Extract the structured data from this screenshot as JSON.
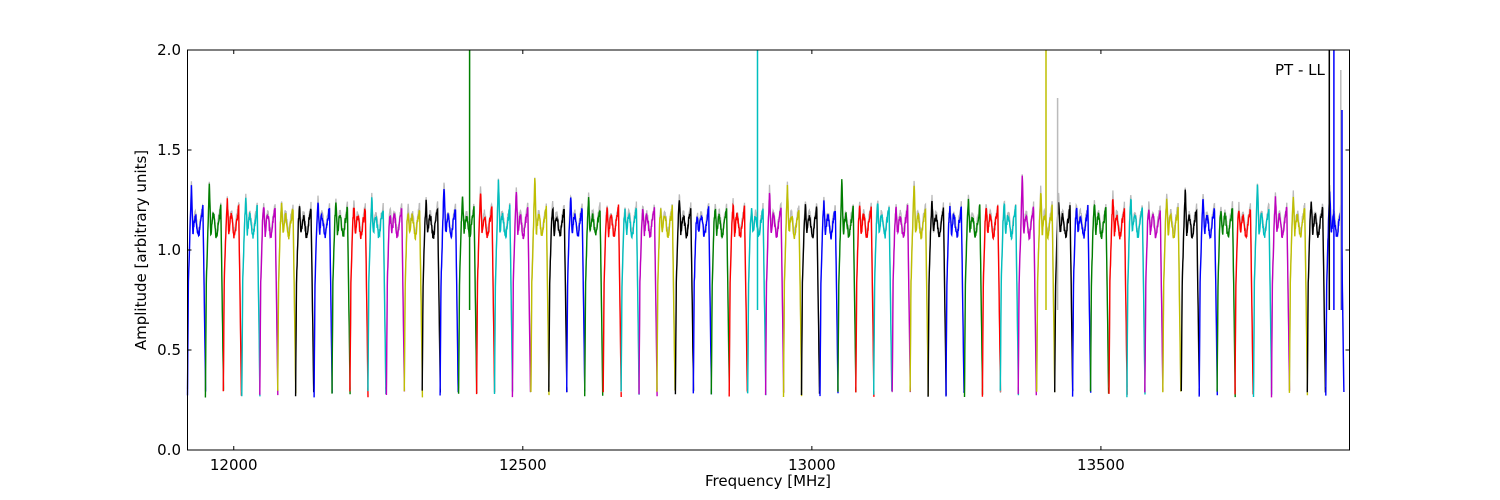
{
  "chart_data": {
    "type": "line",
    "title": "",
    "annotation": "PT - LL",
    "xlabel": "Frequency [MHz]",
    "ylabel": "Amplitude [arbitrary units]",
    "xlim": [
      11920,
      13930
    ],
    "ylim": [
      0.0,
      2.0
    ],
    "x_ticks": [
      12000,
      12500,
      13000,
      13500
    ],
    "x_tick_labels": [
      "12000",
      "12500",
      "13000",
      "13500"
    ],
    "y_ticks": [
      0.0,
      0.5,
      1.0,
      1.5,
      2.0
    ],
    "y_tick_labels": [
      "0.0",
      "0.5",
      "1.0",
      "1.5",
      "2.0"
    ],
    "grid": false,
    "legend": "none",
    "reference_color": "#bbbbbb",
    "channel_width_mhz": 31.25,
    "channel_starts_mhz": [
      11920,
      11951,
      11982,
      12014,
      12045,
      12076,
      12107,
      12139,
      12170,
      12201,
      12232,
      12264,
      12295,
      12326,
      12357,
      12389,
      12420,
      12451,
      12482,
      12514,
      12545,
      12576,
      12607,
      12639,
      12670,
      12701,
      12732,
      12764,
      12795,
      12826,
      12857,
      12889,
      12920,
      12951,
      12982,
      13014,
      13045,
      13076,
      13107,
      13139,
      13170,
      13201,
      13232,
      13264,
      13295,
      13326,
      13357,
      13389,
      13420,
      13451,
      13482,
      13514,
      13545,
      13576,
      13607,
      13639,
      13670,
      13701,
      13732,
      13764,
      13795,
      13826,
      13857,
      13889
    ],
    "channel_colors": [
      "#0000ff",
      "#007f00",
      "#ff0000",
      "#00bfbf",
      "#bf00bf",
      "#bfbf00",
      "#000000"
    ],
    "channel_peak_levels": [
      1.32,
      1.33,
      1.25,
      1.27,
      1.22,
      1.24,
      1.22,
      1.25,
      1.24,
      1.22,
      1.26,
      1.19,
      1.2,
      1.24,
      1.33,
      1.26,
      1.3,
      1.35,
      1.3,
      1.36,
      1.22,
      1.26,
      1.26,
      1.22,
      1.2,
      1.21,
      1.2,
      1.27,
      1.17,
      1.21,
      1.23,
      1.2,
      1.3,
      1.32,
      1.22,
      1.25,
      1.35,
      1.22,
      1.24,
      1.21,
      1.33,
      1.25,
      1.21,
      1.25,
      1.22,
      1.24,
      1.38,
      1.3,
      1.26,
      1.22,
      1.23,
      1.27,
      1.27,
      1.22,
      1.27,
      1.3,
      1.27,
      1.2,
      1.21,
      1.33,
      1.27,
      1.27,
      1.24,
      1.3
    ],
    "spikes": [
      {
        "x": 12408,
        "y": 2.0,
        "color": "#007f00"
      },
      {
        "x": 12906,
        "y": 2.0,
        "color": "#00bfbf"
      },
      {
        "x": 13405,
        "y": 2.0,
        "color": "#bfbf00"
      },
      {
        "x": 13425,
        "y": 1.76,
        "color": "#bbbbbb"
      },
      {
        "x": 13895,
        "y": 2.0,
        "color": "#000000"
      },
      {
        "x": 13903,
        "y": 2.0,
        "color": "#0000ff"
      },
      {
        "x": 13915,
        "y": 1.9,
        "color": "#bbbbbb"
      },
      {
        "x": 13917,
        "y": 1.7,
        "color": "#0000ff"
      }
    ]
  }
}
